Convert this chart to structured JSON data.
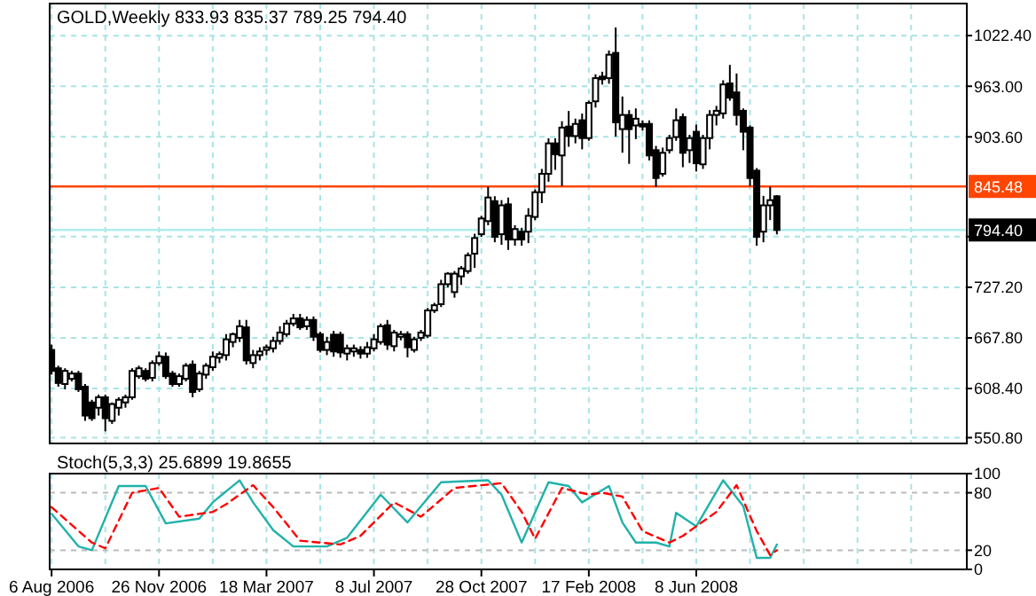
{
  "chart_data": [
    {
      "type": "candlestick",
      "title": "GOLD,Weekly 833.93 835.37 789.25 794.40",
      "x": [
        "2006-08-06",
        "2006-08-13",
        "2006-08-20",
        "2006-08-27",
        "2006-09-03",
        "2006-09-10",
        "2006-09-17",
        "2006-09-24",
        "2006-10-01",
        "2006-10-08",
        "2006-10-15",
        "2006-10-22",
        "2006-10-29",
        "2006-11-05",
        "2006-11-12",
        "2006-11-19",
        "2006-11-26",
        "2006-12-03",
        "2006-12-10",
        "2006-12-17",
        "2006-12-24",
        "2006-12-31",
        "2007-01-07",
        "2007-01-14",
        "2007-01-21",
        "2007-01-28",
        "2007-02-04",
        "2007-02-11",
        "2007-02-18",
        "2007-02-25",
        "2007-03-04",
        "2007-03-11",
        "2007-03-18",
        "2007-03-25",
        "2007-04-01",
        "2007-04-08",
        "2007-04-15",
        "2007-04-22",
        "2007-04-29",
        "2007-05-06",
        "2007-05-13",
        "2007-05-20",
        "2007-05-27",
        "2007-06-03",
        "2007-06-10",
        "2007-06-17",
        "2007-06-24",
        "2007-07-01",
        "2007-07-08",
        "2007-07-15",
        "2007-07-22",
        "2007-07-29",
        "2007-08-05",
        "2007-08-12",
        "2007-08-19",
        "2007-08-26",
        "2007-09-02",
        "2007-09-09",
        "2007-09-16",
        "2007-09-23",
        "2007-09-30",
        "2007-10-07",
        "2007-10-14",
        "2007-10-21",
        "2007-10-28",
        "2007-11-04",
        "2007-11-11",
        "2007-11-18",
        "2007-11-25",
        "2007-12-02",
        "2007-12-09",
        "2007-12-16",
        "2007-12-23",
        "2007-12-30",
        "2008-01-06",
        "2008-01-13",
        "2008-01-20",
        "2008-01-27",
        "2008-02-03",
        "2008-02-10",
        "2008-02-17",
        "2008-02-24",
        "2008-03-02",
        "2008-03-09",
        "2008-03-16",
        "2008-03-23",
        "2008-03-30",
        "2008-04-06",
        "2008-04-13",
        "2008-04-20",
        "2008-04-27",
        "2008-05-04",
        "2008-05-11",
        "2008-05-18",
        "2008-05-25",
        "2008-06-01",
        "2008-06-08",
        "2008-06-15",
        "2008-06-22",
        "2008-06-29",
        "2008-07-06",
        "2008-07-13",
        "2008-07-20",
        "2008-07-27",
        "2008-08-03",
        "2008-08-10",
        "2008-08-17",
        "2008-08-24",
        "2008-08-31"
      ],
      "ohlc": [
        [
          653.7,
          659.9,
          624.7,
          629.1
        ],
        [
          632.2,
          635.2,
          610.6,
          614.9
        ],
        [
          613.7,
          632.2,
          607.5,
          629.1
        ],
        [
          619.8,
          629.1,
          616.7,
          626.0
        ],
        [
          626.0,
          629.1,
          604.4,
          607.5
        ],
        [
          610.6,
          613.7,
          570.5,
          576.7
        ],
        [
          592.1,
          595.2,
          570.5,
          573.6
        ],
        [
          585.9,
          601.3,
          576.7,
          598.2
        ],
        [
          598.2,
          601.3,
          558.2,
          573.6
        ],
        [
          570.5,
          592.1,
          567.0,
          590.2
        ],
        [
          585.9,
          598.2,
          576.7,
          595.2
        ],
        [
          592.1,
          601.3,
          585.9,
          598.2
        ],
        [
          598.2,
          632.2,
          595.2,
          629.1
        ],
        [
          622.9,
          635.2,
          619.8,
          632.2
        ],
        [
          629.1,
          632.2,
          616.7,
          619.8
        ],
        [
          621.0,
          641.4,
          616.7,
          638.3
        ],
        [
          638.3,
          651.9,
          635.2,
          646.3
        ],
        [
          645.7,
          650.7,
          619.8,
          622.9
        ],
        [
          626.0,
          629.1,
          610.6,
          613.7
        ],
        [
          613.7,
          626.0,
          610.6,
          622.9
        ],
        [
          619.8,
          638.3,
          616.7,
          635.2
        ],
        [
          636.5,
          641.4,
          598.2,
          604.4
        ],
        [
          607.5,
          629.1,
          604.4,
          626.0
        ],
        [
          624.7,
          638.3,
          619.8,
          635.2
        ],
        [
          633.4,
          651.9,
          629.1,
          645.7
        ],
        [
          644.5,
          651.9,
          638.3,
          648.8
        ],
        [
          647.6,
          672.2,
          641.4,
          666.1
        ],
        [
          663.0,
          674.1,
          656.8,
          672.2
        ],
        [
          667.9,
          688.9,
          663.0,
          681.5
        ],
        [
          680.2,
          688.9,
          636.5,
          641.4
        ],
        [
          638.3,
          653.7,
          632.2,
          647.6
        ],
        [
          647.6,
          656.8,
          641.4,
          651.9
        ],
        [
          653.7,
          659.9,
          647.6,
          656.8
        ],
        [
          655.6,
          669.1,
          650.7,
          664.2
        ],
        [
          664.2,
          681.5,
          659.9,
          674.1
        ],
        [
          672.2,
          688.9,
          669.1,
          684.6
        ],
        [
          684.6,
          696.0,
          681.5,
          690.7
        ],
        [
          690.7,
          696.0,
          677.2,
          680.2
        ],
        [
          681.5,
          693.0,
          677.2,
          688.9
        ],
        [
          688.9,
          693.0,
          664.2,
          669.1
        ],
        [
          672.2,
          675.0,
          650.7,
          653.7
        ],
        [
          653.7,
          669.1,
          647.6,
          663.0
        ],
        [
          671.6,
          676.0,
          645.7,
          651.9
        ],
        [
          671.6,
          675.0,
          644.5,
          650.7
        ],
        [
          649.4,
          659.9,
          641.4,
          655.6
        ],
        [
          651.9,
          659.9,
          645.7,
          655.6
        ],
        [
          653.7,
          658.1,
          643.5,
          649.4
        ],
        [
          649.4,
          663.0,
          644.5,
          656.8
        ],
        [
          655.6,
          672.2,
          651.9,
          666.1
        ],
        [
          663.0,
          684.6,
          659.9,
          681.5
        ],
        [
          682.7,
          688.9,
          653.7,
          659.9
        ],
        [
          658.1,
          677.2,
          652.0,
          674.1
        ],
        [
          669.1,
          676.0,
          665.0,
          672.2
        ],
        [
          672.2,
          675.5,
          645.0,
          656.8
        ],
        [
          653.7,
          669.1,
          650.7,
          666.1
        ],
        [
          667.9,
          677.2,
          664.2,
          674.1
        ],
        [
          670.4,
          703.0,
          667.9,
          700.0
        ],
        [
          700.0,
          709.0,
          697.0,
          706.1
        ],
        [
          707.4,
          736.0,
          704.0,
          730.8
        ],
        [
          730.8,
          745.0,
          727.0,
          743.1
        ],
        [
          721.5,
          746.2,
          715.0,
          743.1
        ],
        [
          740.0,
          752.0,
          730.0,
          749.3
        ],
        [
          746.2,
          768.0,
          743.0,
          764.7
        ],
        [
          766.6,
          790.0,
          750.0,
          785.0
        ],
        [
          789.4,
          811.0,
          786.3,
          807.9
        ],
        [
          804.8,
          845.0,
          800.0,
          832.5
        ],
        [
          828.2,
          834.0,
          780.0,
          786.3
        ],
        [
          789.4,
          829.4,
          777.0,
          823.3
        ],
        [
          824.5,
          832.5,
          771.0,
          783.2
        ],
        [
          783.2,
          800.0,
          776.0,
          795.5
        ],
        [
          792.4,
          797.0,
          776.0,
          783.2
        ],
        [
          792.4,
          820.0,
          779.0,
          811.0
        ],
        [
          809.7,
          842.0,
          806.0,
          838.7
        ],
        [
          838.7,
          866.0,
          826.0,
          860.3
        ],
        [
          860.3,
          902.0,
          851.0,
          896.0
        ],
        [
          896.0,
          902.0,
          865.0,
          883.1
        ],
        [
          881.8,
          922.0,
          846.0,
          914.5
        ],
        [
          915.7,
          934.0,
          892.0,
          904.6
        ],
        [
          904.6,
          925.0,
          896.0,
          918.8
        ],
        [
          923.1,
          931.0,
          889.0,
          902.2
        ],
        [
          902.2,
          946.0,
          899.0,
          943.5
        ],
        [
          945.3,
          977.0,
          938.0,
          972.5
        ],
        [
          974.3,
          980.0,
          965.0,
          971.2
        ],
        [
          972.5,
          1005.0,
          966.0,
          1000.0
        ],
        [
          1002.1,
          1032.0,
          904.0,
          920.7
        ],
        [
          912.7,
          951.0,
          885.0,
          929.3
        ],
        [
          929.3,
          935.0,
          872.0,
          912.7
        ],
        [
          917.0,
          937.0,
          901.0,
          924.9
        ],
        [
          918.8,
          923.0,
          911.0,
          915.7
        ],
        [
          918.8,
          923.0,
          876.0,
          881.8
        ],
        [
          888.0,
          893.0,
          845.0,
          855.3
        ],
        [
          860.3,
          891.0,
          857.0,
          884.9
        ],
        [
          888.0,
          906.0,
          884.0,
          902.2
        ],
        [
          903.4,
          937.0,
          899.0,
          923.1
        ],
        [
          926.8,
          931.0,
          868.0,
          884.9
        ],
        [
          888.0,
          906.0,
          873.0,
          902.2
        ],
        [
          909.6,
          918.0,
          863.0,
          872.6
        ],
        [
          871.4,
          906.0,
          866.0,
          902.2
        ],
        [
          902.2,
          935.0,
          889.0,
          929.3
        ],
        [
          929.3,
          940.0,
          917.0,
          934.2
        ],
        [
          931.2,
          970.0,
          925.0,
          965.1
        ],
        [
          966.3,
          988.0,
          946.0,
          949.6
        ],
        [
          955.8,
          978.0,
          917.0,
          929.3
        ],
        [
          934.2,
          937.0,
          888.0,
          909.6
        ],
        [
          914.5,
          917.0,
          846.0,
          855.3
        ],
        [
          864.0,
          867.0,
          776.0,
          786.3
        ],
        [
          792.4,
          834.4,
          780.0,
          823.3
        ],
        [
          823.3,
          845.0,
          806.0,
          829.4
        ],
        [
          833.93,
          835.37,
          789.25,
          794.4
        ]
      ],
      "xlim": [
        "2006-08-04",
        "2009-03-17"
      ],
      "xticks": [
        {
          "value": "2006-08-06",
          "label": null
        },
        {
          "value": "2006-10-01",
          "label": null
        },
        {
          "value": "2006-11-26",
          "label": null
        },
        {
          "value": "2007-01-21",
          "label": null
        },
        {
          "value": "2007-03-18",
          "label": null
        },
        {
          "value": "2007-05-13",
          "label": null
        },
        {
          "value": "2007-07-08",
          "label": null
        },
        {
          "value": "2007-09-02",
          "label": null
        },
        {
          "value": "2007-10-28",
          "label": null
        },
        {
          "value": "2007-12-23",
          "label": null
        },
        {
          "value": "2008-02-17",
          "label": null
        },
        {
          "value": "2008-04-13",
          "label": null
        },
        {
          "value": "2008-06-08",
          "label": null
        },
        {
          "value": "2008-08-03",
          "label": null
        },
        {
          "value": "2008-09-28",
          "label": null
        },
        {
          "value": "2008-11-23",
          "label": null
        },
        {
          "value": "2009-01-18",
          "label": null
        }
      ],
      "ylim": [
        544,
        1060
      ],
      "yticks": [
        {
          "value": 550.8,
          "label": "550.80"
        },
        {
          "value": 608.4,
          "label": "608.40"
        },
        {
          "value": 667.8,
          "label": "667.80"
        },
        {
          "value": 727.2,
          "label": "727.20"
        },
        {
          "value": 786.6,
          "label": null
        },
        {
          "value": 903.6,
          "label": "903.60"
        },
        {
          "value": 963.0,
          "label": "963.00"
        },
        {
          "value": 1022.4,
          "label": "1022.40"
        }
      ],
      "grid": true,
      "tick_labels": "y",
      "ref_lines": [
        {
          "axis": "y",
          "value": 845.48,
          "label": "845.48",
          "color": "#ff4500"
        },
        {
          "axis": "y",
          "value": 794.4,
          "label": "794.40",
          "color": "#b0ecec"
        }
      ]
    },
    {
      "type": "line",
      "title": "Stoch(5,3,3) 25.6899 19.8655",
      "series": [
        {
          "color": "#20b2aa",
          "x": [
            "2006-08-06",
            "2006-09-03",
            "2006-09-17",
            "2006-10-15",
            "2006-11-12",
            "2006-12-03",
            "2007-01-07",
            "2007-01-21",
            "2007-02-18",
            "2007-03-04",
            "2007-03-25",
            "2007-04-15",
            "2007-05-20",
            "2007-06-10",
            "2007-07-15",
            "2007-08-12",
            "2007-09-16",
            "2007-11-04",
            "2007-11-18",
            "2007-12-09",
            "2008-01-06",
            "2008-01-27",
            "2008-02-10",
            "2008-03-09",
            "2008-03-23",
            "2008-04-06",
            "2008-04-27",
            "2008-05-11",
            "2008-05-18",
            "2008-06-08",
            "2008-07-06",
            "2008-07-27",
            "2008-08-10",
            "2008-08-24",
            "2008-08-31"
          ],
          "values": [
            58,
            24,
            20,
            87,
            87,
            48,
            53,
            70,
            93,
            70,
            41,
            24,
            24,
            33,
            78,
            49,
            91,
            93,
            78,
            28,
            91,
            87,
            70,
            87,
            49,
            28,
            28,
            24,
            59,
            45,
            93,
            66,
            12,
            12,
            26
          ]
        },
        {
          "color": "#ff0000",
          "line_style": "dashed",
          "x": [
            "2006-08-06",
            "2006-09-17",
            "2006-10-01",
            "2006-10-29",
            "2006-11-26",
            "2006-12-17",
            "2007-01-21",
            "2007-02-04",
            "2007-03-04",
            "2007-03-25",
            "2007-04-22",
            "2007-06-03",
            "2007-06-24",
            "2007-07-29",
            "2007-08-26",
            "2007-09-30",
            "2007-11-18",
            "2007-12-09",
            "2007-12-23",
            "2008-01-20",
            "2008-02-17",
            "2008-03-02",
            "2008-03-23",
            "2008-04-13",
            "2008-05-11",
            "2008-05-25",
            "2008-06-15",
            "2008-06-29",
            "2008-07-20",
            "2008-08-10",
            "2008-08-24",
            "2008-08-31"
          ],
          "values": [
            65,
            28,
            22,
            80,
            85,
            55,
            60,
            68,
            88,
            65,
            30,
            26,
            35,
            70,
            55,
            85,
            90,
            60,
            32,
            85,
            78,
            80,
            76,
            40,
            28,
            35,
            50,
            60,
            88,
            40,
            15,
            20
          ]
        }
      ],
      "xlim": [
        "2006-08-04",
        "2009-03-17"
      ],
      "xticks": [
        {
          "value": "2006-08-06",
          "label": "6 Aug 2006"
        },
        {
          "value": "2006-10-01",
          "label": null
        },
        {
          "value": "2006-11-26",
          "label": "26 Nov 2006"
        },
        {
          "value": "2007-01-21",
          "label": null
        },
        {
          "value": "2007-03-18",
          "label": "18 Mar 2007"
        },
        {
          "value": "2007-05-13",
          "label": null
        },
        {
          "value": "2007-07-08",
          "label": "8 Jul 2007"
        },
        {
          "value": "2007-09-02",
          "label": null
        },
        {
          "value": "2007-10-28",
          "label": "28 Oct 2007"
        },
        {
          "value": "2007-12-23",
          "label": null
        },
        {
          "value": "2008-02-17",
          "label": "17 Feb 2008"
        },
        {
          "value": "2008-04-13",
          "label": null
        },
        {
          "value": "2008-06-08",
          "label": "8 Jun 2008"
        },
        {
          "value": "2008-08-03",
          "label": null
        },
        {
          "value": "2008-09-28",
          "label": null
        },
        {
          "value": "2008-11-23",
          "label": null
        },
        {
          "value": "2009-01-18",
          "label": null
        }
      ],
      "ylim": [
        0,
        100
      ],
      "yticks": [
        0,
        20,
        80,
        100
      ],
      "grid": true
    }
  ]
}
